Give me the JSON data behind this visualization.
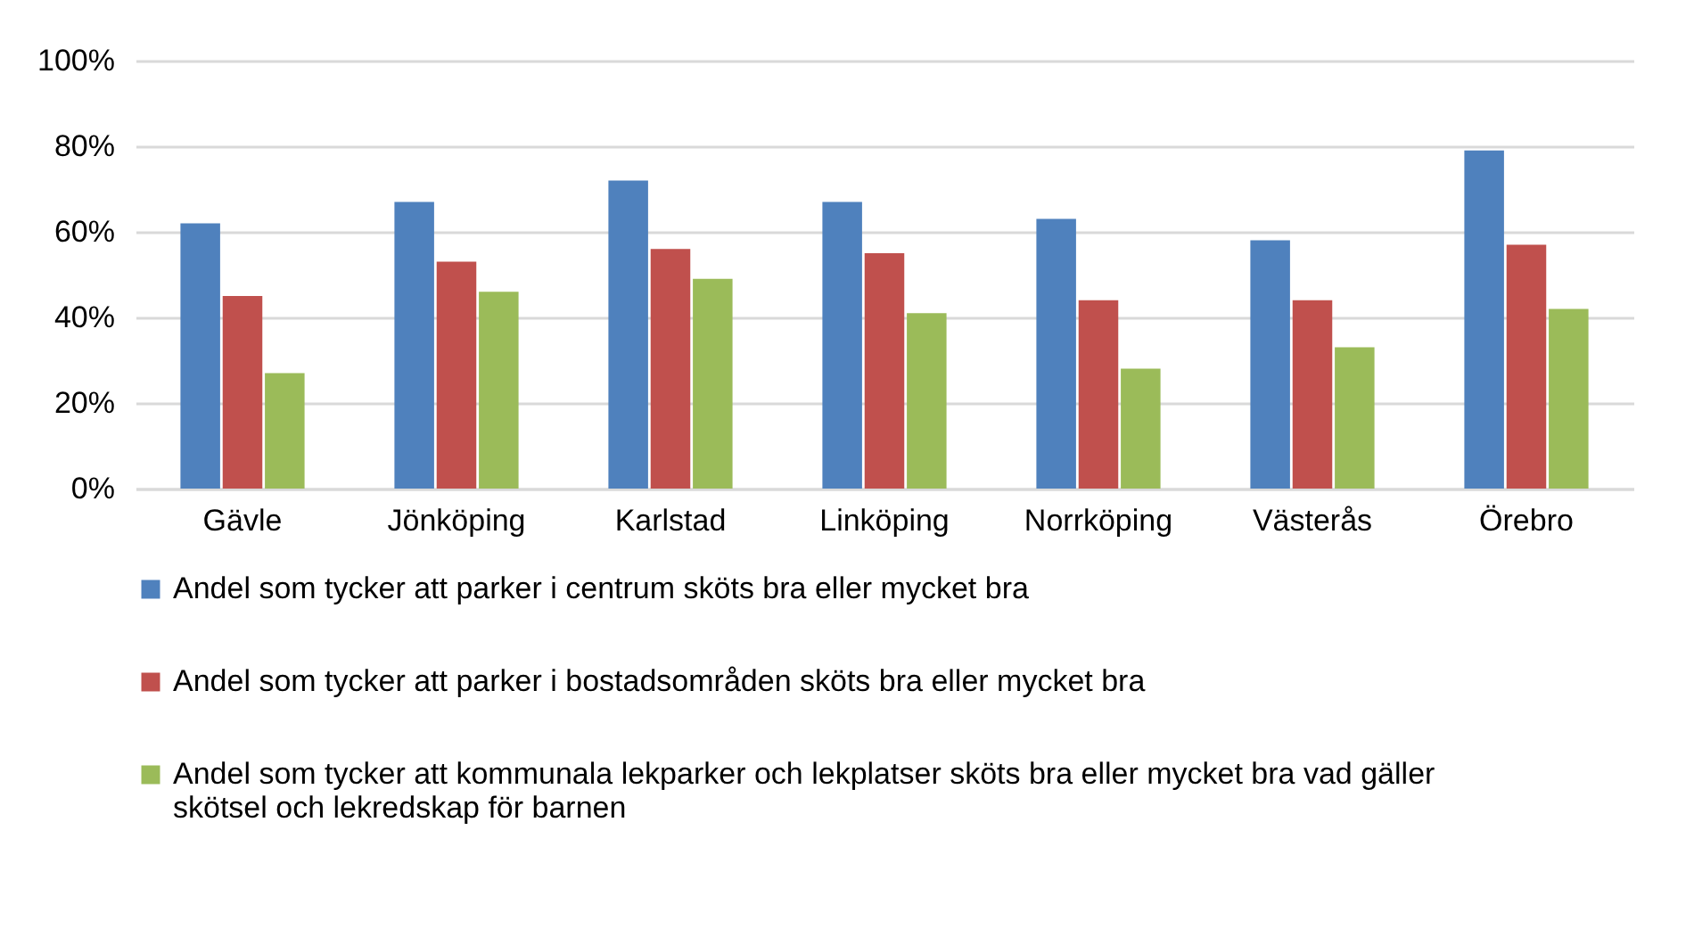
{
  "chart_data": {
    "type": "bar",
    "categories": [
      "Gävle",
      "Jönköping",
      "Karlstad",
      "Linköping",
      "Norrköping",
      "Västerås",
      "Örebro"
    ],
    "series": [
      {
        "name": "Andel som tycker att parker i centrum sköts bra eller mycket bra",
        "color": "#4f81bd",
        "values": [
          62,
          67,
          72,
          67,
          63,
          58,
          79
        ]
      },
      {
        "name": "Andel som tycker att parker i bostadsområden sköts bra eller mycket bra",
        "color": "#c0504d",
        "values": [
          45,
          53,
          56,
          55,
          44,
          44,
          57
        ]
      },
      {
        "name": "Andel som tycker att kommunala lekparker och lekplatser sköts bra eller mycket bra vad gäller skötsel och lekredskap för barnen",
        "color": "#9bbb59",
        "values": [
          27,
          46,
          49,
          41,
          28,
          33,
          42
        ]
      }
    ],
    "ylim": [
      0,
      100
    ],
    "yticks": [
      {
        "value": 0,
        "label": "0%"
      },
      {
        "value": 20,
        "label": "20%"
      },
      {
        "value": 40,
        "label": "40%"
      },
      {
        "value": 60,
        "label": "60%"
      },
      {
        "value": 80,
        "label": "80%"
      },
      {
        "value": 100,
        "label": "100%"
      }
    ],
    "grid": "y",
    "legend": "bottom"
  }
}
